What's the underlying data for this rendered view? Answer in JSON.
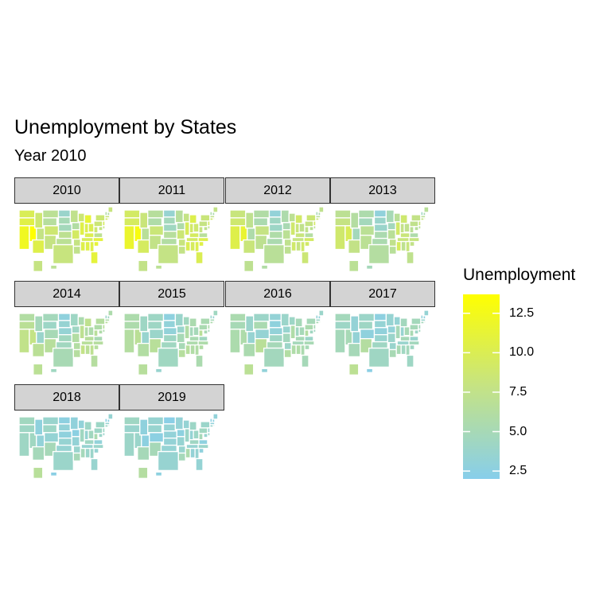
{
  "title": "Unemployment by States",
  "subtitle": "Year 2010",
  "panels": [
    "2010",
    "2011",
    "2012",
    "2013",
    "2014",
    "2015",
    "2016",
    "2017",
    "2018",
    "2019"
  ],
  "legend": {
    "title": "Unemployment",
    "low_color": "#87CEEB",
    "mid_color": "#C5E384",
    "high_color": "#FFFF00",
    "min": 2.0,
    "max": 13.7,
    "ticks": [
      "12.5",
      "10.0",
      "7.5",
      "5.0",
      "2.5"
    ]
  },
  "map_data": {
    "measure": "Unemployment",
    "state_order": [
      "WA",
      "OR",
      "CA",
      "NV",
      "ID",
      "MT",
      "WY",
      "UT",
      "AZ",
      "CO",
      "NM",
      "ND",
      "SD",
      "NE",
      "KS",
      "OK",
      "TX",
      "MN",
      "IA",
      "MO",
      "AR",
      "LA",
      "WI",
      "IL",
      "MI",
      "IN",
      "KY",
      "TN",
      "MS",
      "AL",
      "OH",
      "WV",
      "VA",
      "NC",
      "SC",
      "GA",
      "FL",
      "PA",
      "NY",
      "VT",
      "NH",
      "ME",
      "MA",
      "RI",
      "CT",
      "NJ",
      "DE",
      "MD",
      "AK",
      "HI"
    ],
    "values": {
      "2010": [
        9.9,
        10.6,
        12.2,
        13.7,
        8.7,
        6.9,
        6.4,
        7.8,
        10.4,
        8.7,
        7.9,
        3.8,
        5.0,
        4.7,
        7.1,
        6.9,
        8.1,
        7.4,
        6.1,
        9.3,
        7.9,
        7.4,
        8.5,
        10.5,
        11.3,
        10.2,
        10.2,
        9.7,
        10.4,
        10.5,
        10.0,
        8.7,
        7.1,
        10.9,
        11.2,
        10.5,
        11.1,
        8.5,
        8.6,
        6.1,
        5.8,
        8.1,
        8.3,
        11.2,
        9.1,
        9.5,
        8.0,
        7.8,
        7.9,
        6.9
      ],
      "2011": [
        9.3,
        9.5,
        11.7,
        13.0,
        8.3,
        6.5,
        5.8,
        6.7,
        9.5,
        8.4,
        7.6,
        3.5,
        4.7,
        4.4,
        6.5,
        6.1,
        7.8,
        6.5,
        5.7,
        8.5,
        8.1,
        7.7,
        7.8,
        9.7,
        10.3,
        9.1,
        9.5,
        9.3,
        10.0,
        9.6,
        8.8,
        8.0,
        6.6,
        10.3,
        10.5,
        10.2,
        10.0,
        7.9,
        8.3,
        5.6,
        5.4,
        7.7,
        7.3,
        11.1,
        8.8,
        9.3,
        7.4,
        7.3,
        7.6,
        6.9
      ],
      "2012": [
        8.2,
        8.8,
        10.4,
        11.5,
        7.2,
        6.0,
        5.4,
        5.7,
        8.3,
        7.9,
        7.1,
        3.1,
        4.3,
        4.1,
        5.8,
        5.4,
        6.7,
        5.6,
        5.2,
        6.9,
        7.3,
        7.1,
        7.0,
        8.9,
        9.1,
        8.3,
        8.2,
        8.0,
        9.0,
        8.0,
        7.4,
        7.5,
        6.2,
        9.3,
        9.2,
        9.0,
        8.5,
        7.9,
        8.5,
        5.0,
        5.5,
        7.3,
        6.7,
        10.4,
        8.3,
        9.3,
        7.2,
        7.0,
        7.1,
        6.0
      ],
      "2013": [
        7.0,
        7.9,
        8.9,
        9.8,
        6.2,
        5.6,
        4.7,
        4.7,
        7.7,
        6.9,
        6.9,
        2.9,
        3.8,
        3.8,
        5.4,
        5.4,
        6.2,
        5.0,
        4.6,
        6.7,
        7.4,
        6.6,
        6.7,
        9.1,
        8.8,
        7.7,
        8.3,
        8.2,
        9.5,
        7.2,
        7.4,
        6.8,
        5.7,
        8.0,
        7.6,
        8.2,
        7.3,
        7.4,
        7.7,
        4.4,
        5.1,
        6.7,
        6.7,
        9.5,
        7.8,
        8.2,
        6.7,
        6.6,
        6.9,
        4.8
      ],
      "2014": [
        6.1,
        6.8,
        7.5,
        7.8,
        4.8,
        4.7,
        4.1,
        3.8,
        6.8,
        5.0,
        6.5,
        2.8,
        3.4,
        3.3,
        4.5,
        4.5,
        5.1,
        4.2,
        4.3,
        6.1,
        6.1,
        6.3,
        5.4,
        7.1,
        7.2,
        6.0,
        6.5,
        6.6,
        7.7,
        6.8,
        5.7,
        6.6,
        5.2,
        6.3,
        6.4,
        7.1,
        6.3,
        5.8,
        6.3,
        3.9,
        4.3,
        5.6,
        5.8,
        7.7,
        6.6,
        6.6,
        5.7,
        5.8,
        6.9,
        4.4
      ],
      "2015": [
        5.6,
        5.6,
        6.2,
        6.8,
        4.2,
        4.2,
        4.2,
        3.6,
        6.1,
        3.9,
        6.6,
        2.7,
        3.0,
        3.0,
        4.2,
        4.4,
        4.4,
        3.8,
        3.8,
        5.0,
        5.0,
        6.4,
        4.5,
        5.9,
        5.4,
        4.8,
        5.3,
        5.6,
        6.4,
        6.0,
        4.9,
        6.7,
        4.5,
        5.7,
        6.0,
        5.9,
        5.4,
        5.3,
        5.3,
        3.6,
        3.4,
        4.4,
        5.0,
        6.0,
        5.6,
        5.6,
        4.9,
        5.1,
        6.5,
        3.6
      ],
      "2016": [
        5.4,
        5.0,
        5.5,
        5.7,
        3.8,
        4.0,
        5.3,
        3.4,
        5.4,
        3.3,
        6.7,
        3.2,
        2.8,
        3.1,
        4.2,
        4.9,
        4.6,
        3.9,
        3.6,
        4.6,
        4.0,
        6.1,
        4.1,
        5.8,
        4.9,
        4.4,
        5.0,
        4.8,
        5.8,
        5.8,
        4.9,
        6.1,
        4.0,
        5.1,
        5.0,
        5.4,
        4.9,
        5.4,
        4.9,
        3.2,
        2.9,
        3.9,
        4.0,
        5.3,
        5.1,
        5.0,
        4.4,
        4.4,
        6.9,
        3.0
      ],
      "2017": [
        4.7,
        4.1,
        4.8,
        5.0,
        3.2,
        4.0,
        4.2,
        3.2,
        4.9,
        2.8,
        6.2,
        2.6,
        3.3,
        2.9,
        3.6,
        4.3,
        4.3,
        3.4,
        3.1,
        3.8,
        3.7,
        5.1,
        3.3,
        4.9,
        4.6,
        3.5,
        4.9,
        3.7,
        5.1,
        4.4,
        5.0,
        5.2,
        3.7,
        4.6,
        4.3,
        4.7,
        4.2,
        4.9,
        4.7,
        3.0,
        2.7,
        3.3,
        3.7,
        4.5,
        4.7,
        4.6,
        4.5,
        4.1,
        7.0,
        2.4
      ],
      "2018": [
        4.5,
        4.2,
        4.2,
        4.4,
        2.8,
        3.7,
        4.1,
        3.1,
        4.8,
        3.3,
        4.9,
        2.6,
        3.1,
        2.8,
        3.4,
        3.4,
        3.9,
        2.9,
        2.5,
        3.2,
        3.7,
        4.9,
        3.0,
        4.4,
        4.1,
        3.4,
        4.3,
        3.5,
        4.8,
        3.9,
        4.5,
        5.3,
        3.0,
        3.9,
        3.4,
        3.9,
        3.6,
        4.1,
        4.1,
        2.4,
        2.5,
        3.4,
        3.4,
        4.0,
        4.1,
        4.1,
        3.8,
        3.9,
        6.6,
        2.4
      ],
      "2019": [
        4.3,
        3.7,
        4.0,
        3.9,
        2.8,
        3.5,
        3.6,
        2.6,
        4.9,
        2.5,
        4.9,
        2.3,
        3.3,
        3.1,
        3.2,
        3.3,
        3.5,
        3.2,
        2.7,
        3.4,
        3.6,
        4.8,
        3.3,
        4.0,
        4.1,
        3.3,
        4.3,
        3.5,
        5.5,
        3.2,
        4.1,
        4.9,
        2.7,
        3.9,
        2.8,
        3.4,
        3.3,
        4.4,
        3.9,
        2.4,
        2.6,
        3.0,
        2.9,
        3.6,
        3.7,
        3.5,
        3.9,
        3.6,
        6.2,
        2.7
      ]
    }
  }
}
